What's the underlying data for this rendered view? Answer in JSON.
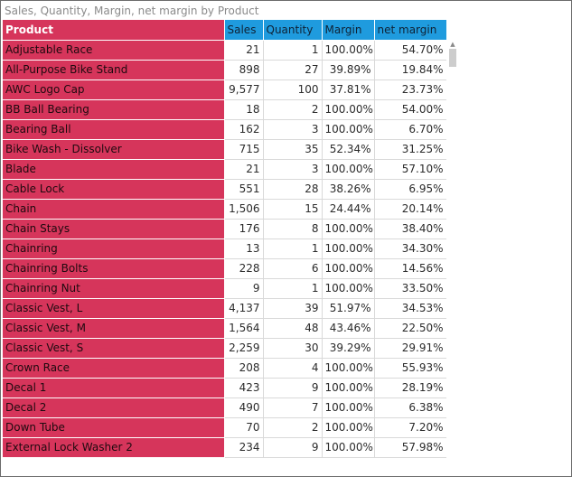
{
  "visual": {
    "title": "Sales, Quantity, Margin, net margin by Product"
  },
  "table": {
    "columns": [
      "Product",
      "Sales",
      "Quantity",
      "Margin",
      "net margin"
    ],
    "rows": [
      [
        "Adjustable Race",
        "21",
        "1",
        "100.00%",
        "54.70%"
      ],
      [
        "All-Purpose Bike Stand",
        "898",
        "27",
        "39.89%",
        "19.84%"
      ],
      [
        "AWC Logo Cap",
        "9,577",
        "100",
        "37.81%",
        "23.73%"
      ],
      [
        "BB Ball Bearing",
        "18",
        "2",
        "100.00%",
        "54.00%"
      ],
      [
        "Bearing Ball",
        "162",
        "3",
        "100.00%",
        "6.70%"
      ],
      [
        "Bike Wash - Dissolver",
        "715",
        "35",
        "52.34%",
        "31.25%"
      ],
      [
        "Blade",
        "21",
        "3",
        "100.00%",
        "57.10%"
      ],
      [
        "Cable Lock",
        "551",
        "28",
        "38.26%",
        "6.95%"
      ],
      [
        "Chain",
        "1,506",
        "15",
        "24.44%",
        "20.14%"
      ],
      [
        "Chain Stays",
        "176",
        "8",
        "100.00%",
        "38.40%"
      ],
      [
        "Chainring",
        "13",
        "1",
        "100.00%",
        "34.30%"
      ],
      [
        "Chainring Bolts",
        "228",
        "6",
        "100.00%",
        "14.56%"
      ],
      [
        "Chainring Nut",
        "9",
        "1",
        "100.00%",
        "33.50%"
      ],
      [
        "Classic Vest, L",
        "4,137",
        "39",
        "51.97%",
        "34.53%"
      ],
      [
        "Classic Vest, M",
        "1,564",
        "48",
        "43.46%",
        "22.50%"
      ],
      [
        "Classic Vest, S",
        "2,259",
        "30",
        "39.29%",
        "29.91%"
      ],
      [
        "Crown Race",
        "208",
        "4",
        "100.00%",
        "55.93%"
      ],
      [
        "Decal 1",
        "423",
        "9",
        "100.00%",
        "28.19%"
      ],
      [
        "Decal 2",
        "490",
        "7",
        "100.00%",
        "6.38%"
      ],
      [
        "Down Tube",
        "70",
        "2",
        "100.00%",
        "7.20%"
      ],
      [
        "External Lock Washer 2",
        "234",
        "9",
        "100.00%",
        "57.98%"
      ]
    ]
  },
  "colors": {
    "product_column_bg": "#d6355b",
    "header_bg": "#1f9bde"
  },
  "scrollbar": {
    "up_arrow_icon": "chevron-up-icon",
    "up_arrow_glyph": "▲"
  }
}
